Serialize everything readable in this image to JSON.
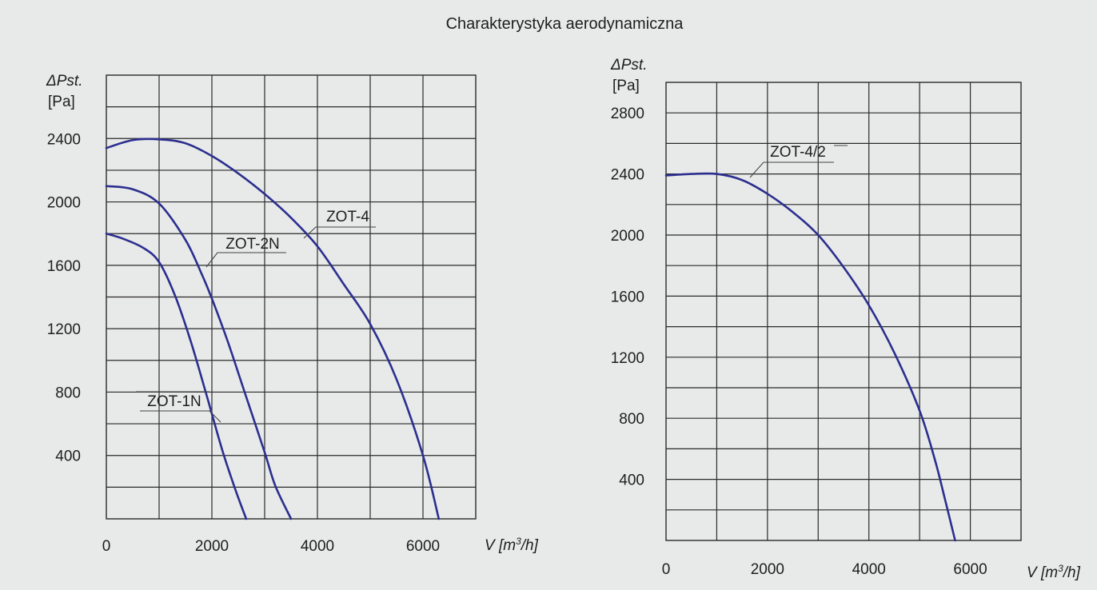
{
  "title": "Charakterystyka aerodynamiczna",
  "colors": {
    "curve": "#2b2f8e",
    "grid": "#2a2a2a",
    "background": "#e8e9e9"
  },
  "chart_data": [
    {
      "type": "line",
      "ylabel_symbol": "ΔPst.",
      "ylabel_unit": "[Pa]",
      "xlabel": "V [m³/h]",
      "xlim": [
        0,
        7000
      ],
      "ylim": [
        0,
        2800
      ],
      "x_ticks": [
        0,
        2000,
        4000,
        6000
      ],
      "y_ticks": [
        400,
        800,
        1200,
        1600,
        2000,
        2400
      ],
      "grid": true,
      "series": [
        {
          "name": "ZOT-4",
          "x": [
            0,
            500,
            1000,
            1500,
            2000,
            2500,
            3000,
            3500,
            4000,
            4500,
            5000,
            5500,
            6000,
            6300
          ],
          "y": [
            2340,
            2390,
            2395,
            2370,
            2290,
            2180,
            2050,
            1900,
            1720,
            1480,
            1230,
            880,
            400,
            0
          ]
        },
        {
          "name": "ZOT-2N",
          "x": [
            0,
            500,
            1000,
            1500,
            1800,
            2000,
            2300,
            2600,
            3000,
            3200,
            3500
          ],
          "y": [
            2100,
            2080,
            1990,
            1760,
            1550,
            1390,
            1120,
            820,
            420,
            210,
            0
          ]
        },
        {
          "name": "ZOT-1N",
          "x": [
            0,
            300,
            700,
            1000,
            1300,
            1600,
            1900,
            2200,
            2450,
            2650
          ],
          "y": [
            1800,
            1770,
            1710,
            1620,
            1410,
            1120,
            780,
            430,
            180,
            0
          ]
        }
      ]
    },
    {
      "type": "line",
      "ylabel_symbol": "ΔPst.",
      "ylabel_unit": "[Pa]",
      "xlabel": "V [m³/h]",
      "xlim": [
        0,
        7000
      ],
      "ylim": [
        0,
        3000
      ],
      "x_ticks": [
        0,
        2000,
        4000,
        6000
      ],
      "y_ticks": [
        400,
        800,
        1200,
        1600,
        2000,
        2400,
        2800
      ],
      "grid": true,
      "series": [
        {
          "name": "ZOT-4/2",
          "x": [
            0,
            500,
            1000,
            1500,
            2000,
            2500,
            3000,
            3500,
            4000,
            4500,
            5000,
            5300,
            5500,
            5700
          ],
          "y": [
            2390,
            2400,
            2400,
            2360,
            2270,
            2150,
            2000,
            1790,
            1540,
            1230,
            850,
            530,
            270,
            0
          ]
        }
      ]
    }
  ]
}
